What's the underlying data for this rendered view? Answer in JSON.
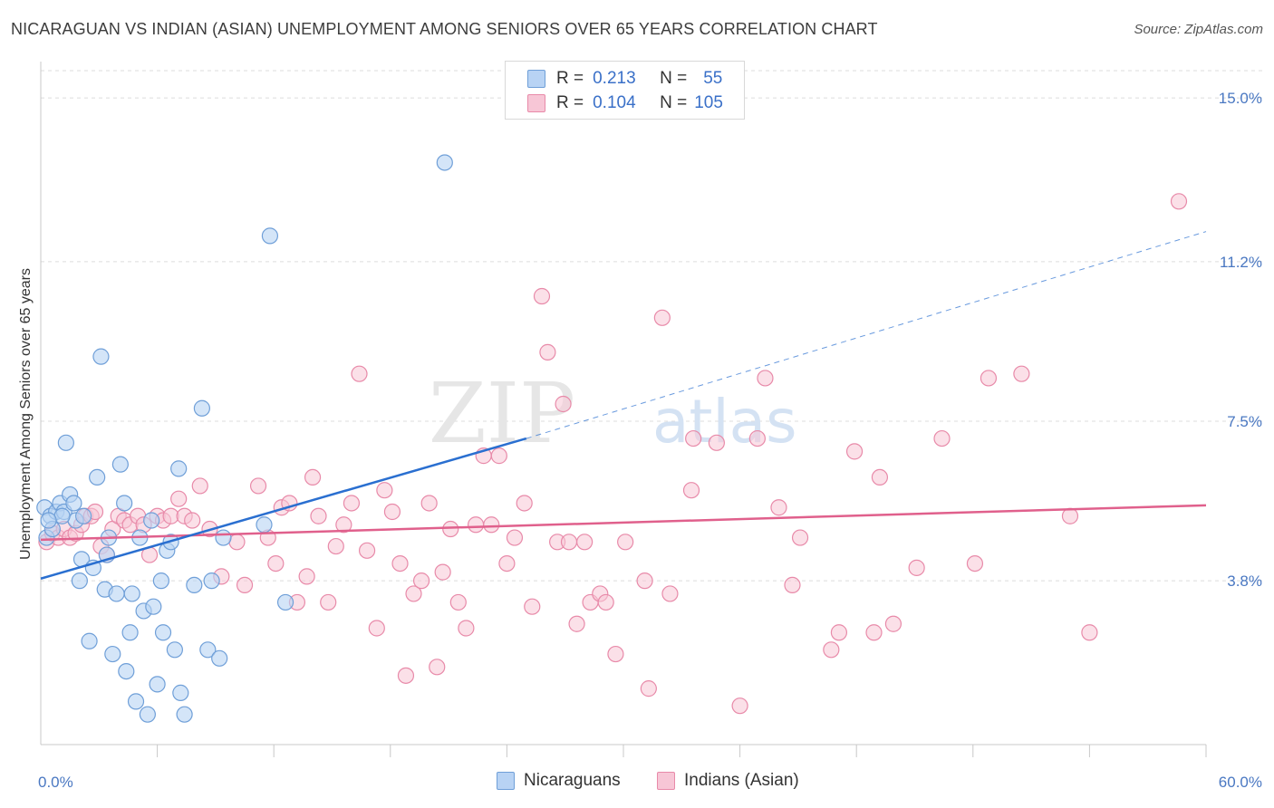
{
  "title": "NICARAGUAN VS INDIAN (ASIAN) UNEMPLOYMENT AMONG SENIORS OVER 65 YEARS CORRELATION CHART",
  "source": "Source: ZipAtlas.com",
  "watermark": {
    "zip": "ZIP",
    "atlas": "atlas"
  },
  "legend": {
    "rows": [
      {
        "r_label": "R =",
        "r_value": "0.213",
        "n_label": "N =",
        "n_value": "55"
      },
      {
        "r_label": "R =",
        "r_value": "0.104",
        "n_label": "N =",
        "n_value": "105"
      }
    ]
  },
  "colors": {
    "nicaraguans_fill": "#b8d3f4",
    "nicaraguans_stroke": "#6f9fd8",
    "nicaraguans_line": "#2a6fd0",
    "indians_fill": "#f7c6d6",
    "indians_stroke": "#e88aa9",
    "indians_line": "#e0608c",
    "grid": "#dcdcdc",
    "tick_label": "#4a78c2"
  },
  "chart_data": {
    "type": "scatter",
    "title": "NICARAGUAN VS INDIAN (ASIAN) UNEMPLOYMENT AMONG SENIORS OVER 65 YEARS CORRELATION CHART",
    "xlabel": "",
    "ylabel": "Unemployment Among Seniors over 65 years",
    "xlim": [
      0,
      60
    ],
    "ylim": [
      0,
      15.8
    ],
    "x_tick_labels": [
      "0.0%",
      "60.0%"
    ],
    "y_ticks": [
      3.8,
      7.5,
      11.2,
      15.0
    ],
    "y_tick_labels": [
      "3.8%",
      "7.5%",
      "11.2%",
      "15.0%"
    ],
    "grid": true,
    "legend_position": "top-center",
    "series": [
      {
        "name": "Nicaraguans",
        "r": 0.213,
        "n": 55,
        "trend": {
          "x": [
            0,
            25
          ],
          "y": [
            3.85,
            7.1
          ],
          "extended_to_x": 60,
          "extended_y": 11.9
        },
        "points": [
          [
            0.2,
            5.5
          ],
          [
            0.5,
            5.3
          ],
          [
            0.8,
            5.4
          ],
          [
            1.0,
            5.6
          ],
          [
            1.2,
            5.4
          ],
          [
            1.3,
            7.0
          ],
          [
            1.5,
            5.8
          ],
          [
            1.7,
            5.6
          ],
          [
            1.8,
            5.2
          ],
          [
            2.0,
            3.8
          ],
          [
            2.1,
            4.3
          ],
          [
            2.2,
            5.3
          ],
          [
            2.5,
            2.4
          ],
          [
            2.7,
            4.1
          ],
          [
            2.9,
            6.2
          ],
          [
            3.1,
            9.0
          ],
          [
            3.3,
            3.6
          ],
          [
            3.4,
            4.4
          ],
          [
            3.5,
            4.8
          ],
          [
            3.7,
            2.1
          ],
          [
            3.9,
            3.5
          ],
          [
            4.1,
            6.5
          ],
          [
            4.3,
            5.6
          ],
          [
            4.4,
            1.7
          ],
          [
            4.6,
            2.6
          ],
          [
            4.7,
            3.5
          ],
          [
            4.9,
            1.0
          ],
          [
            5.1,
            4.8
          ],
          [
            5.3,
            3.1
          ],
          [
            5.5,
            0.7
          ],
          [
            5.7,
            5.2
          ],
          [
            5.8,
            3.2
          ],
          [
            6.0,
            1.4
          ],
          [
            6.2,
            3.8
          ],
          [
            6.3,
            2.6
          ],
          [
            6.5,
            4.5
          ],
          [
            6.7,
            4.7
          ],
          [
            6.9,
            2.2
          ],
          [
            7.1,
            6.4
          ],
          [
            7.2,
            1.2
          ],
          [
            7.4,
            0.7
          ],
          [
            7.9,
            3.7
          ],
          [
            8.3,
            7.8
          ],
          [
            8.6,
            2.2
          ],
          [
            8.8,
            3.8
          ],
          [
            9.2,
            2.0
          ],
          [
            9.4,
            4.8
          ],
          [
            11.5,
            5.1
          ],
          [
            12.6,
            3.3
          ],
          [
            11.8,
            11.8
          ],
          [
            20.8,
            13.5
          ],
          [
            0.3,
            4.8
          ],
          [
            0.6,
            5.0
          ],
          [
            1.1,
            5.3
          ],
          [
            0.4,
            5.2
          ]
        ]
      },
      {
        "name": "Indians (Asian)",
        "r": 0.104,
        "n": 105,
        "trend": {
          "x": [
            0,
            60
          ],
          "y": [
            4.75,
            5.55
          ]
        },
        "points": [
          [
            0.3,
            4.7
          ],
          [
            0.6,
            4.9
          ],
          [
            0.9,
            4.8
          ],
          [
            1.2,
            5.0
          ],
          [
            1.5,
            4.8
          ],
          [
            1.8,
            4.9
          ],
          [
            2.1,
            5.1
          ],
          [
            2.3,
            5.3
          ],
          [
            2.6,
            5.3
          ],
          [
            2.8,
            5.4
          ],
          [
            3.1,
            4.6
          ],
          [
            3.4,
            4.4
          ],
          [
            3.7,
            5.0
          ],
          [
            4.0,
            5.3
          ],
          [
            4.3,
            5.2
          ],
          [
            4.6,
            5.1
          ],
          [
            5.0,
            5.3
          ],
          [
            5.3,
            5.1
          ],
          [
            5.6,
            4.4
          ],
          [
            6.0,
            5.3
          ],
          [
            6.3,
            5.2
          ],
          [
            6.7,
            5.3
          ],
          [
            7.1,
            5.7
          ],
          [
            7.4,
            5.3
          ],
          [
            7.8,
            5.2
          ],
          [
            8.2,
            6.0
          ],
          [
            8.7,
            5.0
          ],
          [
            9.3,
            3.9
          ],
          [
            10.1,
            4.7
          ],
          [
            10.5,
            3.7
          ],
          [
            11.2,
            6.0
          ],
          [
            11.7,
            4.8
          ],
          [
            12.1,
            4.2
          ],
          [
            12.4,
            5.5
          ],
          [
            12.8,
            5.6
          ],
          [
            13.2,
            3.3
          ],
          [
            13.7,
            3.9
          ],
          [
            14.0,
            6.2
          ],
          [
            14.3,
            5.3
          ],
          [
            14.8,
            3.3
          ],
          [
            15.2,
            4.6
          ],
          [
            15.6,
            5.1
          ],
          [
            16.0,
            5.6
          ],
          [
            16.4,
            8.6
          ],
          [
            16.8,
            4.5
          ],
          [
            17.3,
            2.7
          ],
          [
            17.7,
            5.9
          ],
          [
            18.1,
            5.4
          ],
          [
            18.5,
            4.2
          ],
          [
            18.8,
            1.6
          ],
          [
            19.2,
            3.5
          ],
          [
            19.6,
            3.8
          ],
          [
            20.0,
            5.6
          ],
          [
            20.4,
            1.8
          ],
          [
            20.7,
            4.0
          ],
          [
            21.1,
            5.0
          ],
          [
            21.5,
            3.3
          ],
          [
            21.9,
            2.7
          ],
          [
            22.4,
            5.1
          ],
          [
            22.8,
            6.7
          ],
          [
            23.2,
            5.1
          ],
          [
            23.6,
            6.7
          ],
          [
            24.0,
            4.2
          ],
          [
            24.4,
            4.8
          ],
          [
            24.9,
            5.6
          ],
          [
            25.3,
            3.2
          ],
          [
            25.8,
            10.4
          ],
          [
            26.1,
            9.1
          ],
          [
            26.6,
            4.7
          ],
          [
            26.9,
            7.9
          ],
          [
            27.2,
            4.7
          ],
          [
            27.6,
            2.8
          ],
          [
            28.0,
            4.7
          ],
          [
            28.3,
            3.3
          ],
          [
            28.8,
            3.5
          ],
          [
            29.1,
            3.3
          ],
          [
            29.6,
            2.1
          ],
          [
            30.1,
            4.7
          ],
          [
            31.1,
            3.8
          ],
          [
            31.3,
            1.3
          ],
          [
            32.0,
            9.9
          ],
          [
            32.4,
            3.5
          ],
          [
            33.5,
            5.9
          ],
          [
            33.6,
            7.1
          ],
          [
            34.8,
            7.0
          ],
          [
            36.0,
            0.9
          ],
          [
            36.9,
            7.1
          ],
          [
            37.3,
            8.5
          ],
          [
            38.0,
            5.5
          ],
          [
            38.7,
            3.7
          ],
          [
            39.1,
            4.8
          ],
          [
            40.7,
            2.2
          ],
          [
            41.1,
            2.6
          ],
          [
            41.9,
            6.8
          ],
          [
            42.9,
            2.6
          ],
          [
            43.2,
            6.2
          ],
          [
            43.9,
            2.8
          ],
          [
            45.1,
            4.1
          ],
          [
            46.4,
            7.1
          ],
          [
            48.1,
            4.2
          ],
          [
            48.8,
            8.5
          ],
          [
            50.5,
            8.6
          ],
          [
            53.0,
            5.3
          ],
          [
            54.0,
            2.6
          ],
          [
            58.6,
            12.6
          ]
        ]
      }
    ]
  },
  "bottom_legend": [
    {
      "label": "Nicaraguans"
    },
    {
      "label": "Indians (Asian)"
    }
  ]
}
